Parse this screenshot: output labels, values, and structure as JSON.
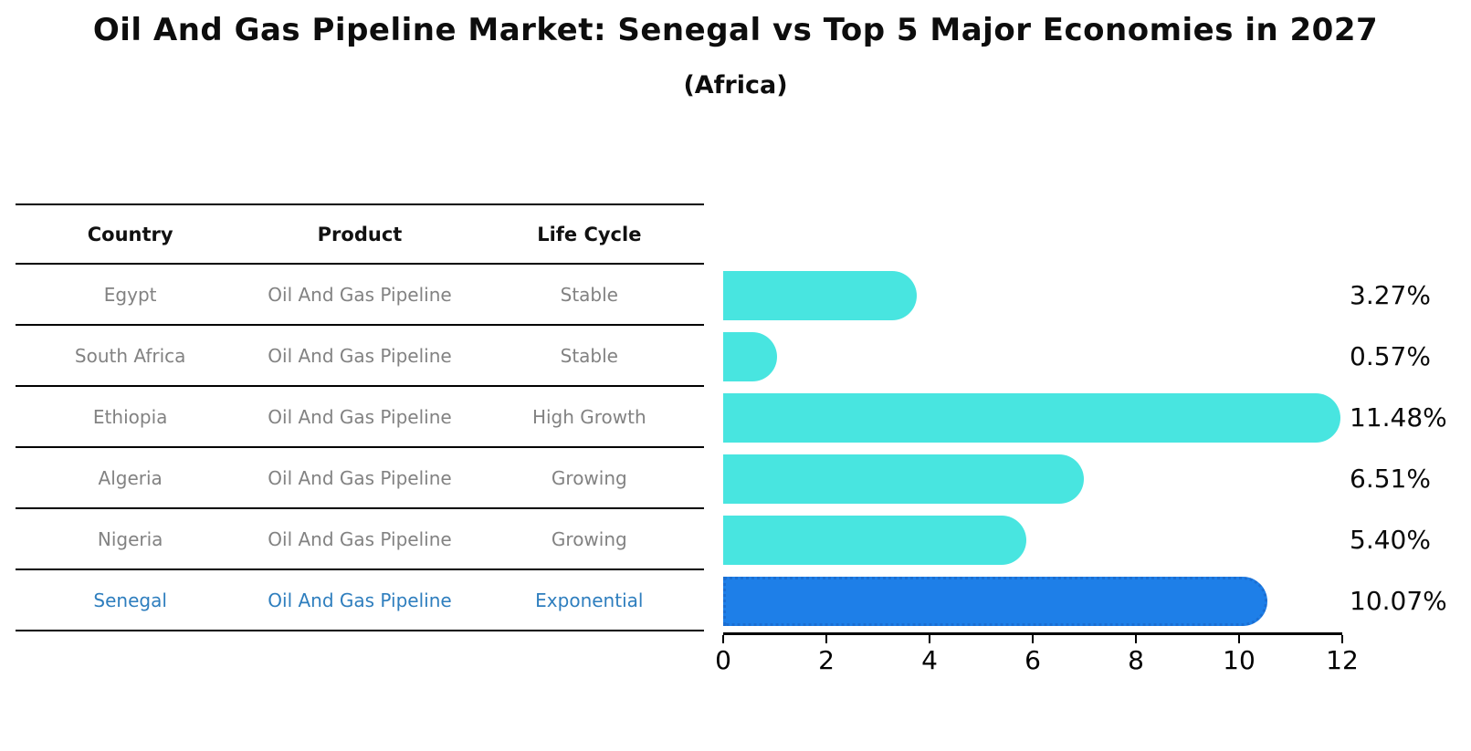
{
  "title": "Oil And Gas Pipeline Market: Senegal vs Top 5 Major Economies in 2027",
  "subtitle": "(Africa)",
  "colors": {
    "background": "#ffffff",
    "bar_default": "#48e5e0",
    "bar_highlight": "#1e7fe8",
    "bar_highlight_edge": "#1b6ed2",
    "highlight_text": "#2e7ebe",
    "table_text": "#828282"
  },
  "table": {
    "headers": [
      "Country",
      "Product",
      "Life Cycle"
    ],
    "rows": [
      {
        "country": "Egypt",
        "product": "Oil And Gas Pipeline",
        "life_cycle": "Stable",
        "highlight": false
      },
      {
        "country": "South Africa",
        "product": "Oil And Gas Pipeline",
        "life_cycle": "Stable",
        "highlight": false
      },
      {
        "country": "Ethiopia",
        "product": "Oil And Gas Pipeline",
        "life_cycle": "High Growth",
        "highlight": false
      },
      {
        "country": "Algeria",
        "product": "Oil And Gas Pipeline",
        "life_cycle": "Growing",
        "highlight": false
      },
      {
        "country": "Nigeria",
        "product": "Oil And Gas Pipeline",
        "life_cycle": "Growing",
        "highlight": false
      },
      {
        "country": "Senegal",
        "product": "Oil And Gas Pipeline",
        "life_cycle": "Exponential",
        "highlight": true
      }
    ]
  },
  "chart_data": {
    "type": "bar",
    "orientation": "horizontal",
    "title": "Oil And Gas Pipeline Market: Senegal vs Top 5 Major Economies in 2027 (Africa)",
    "categories": [
      "Egypt",
      "South Africa",
      "Ethiopia",
      "Algeria",
      "Nigeria",
      "Senegal"
    ],
    "values": [
      3.27,
      0.57,
      11.48,
      6.51,
      5.4,
      10.07
    ],
    "value_labels": [
      "3.27%",
      "0.57%",
      "11.48%",
      "6.51%",
      "5.40%",
      "10.07%"
    ],
    "xlabel": "",
    "ylabel": "",
    "xlim": [
      0,
      12
    ],
    "xticks": [
      0,
      2,
      4,
      6,
      8,
      10,
      12
    ],
    "grid": false,
    "legend": false,
    "highlight_index": 5
  }
}
